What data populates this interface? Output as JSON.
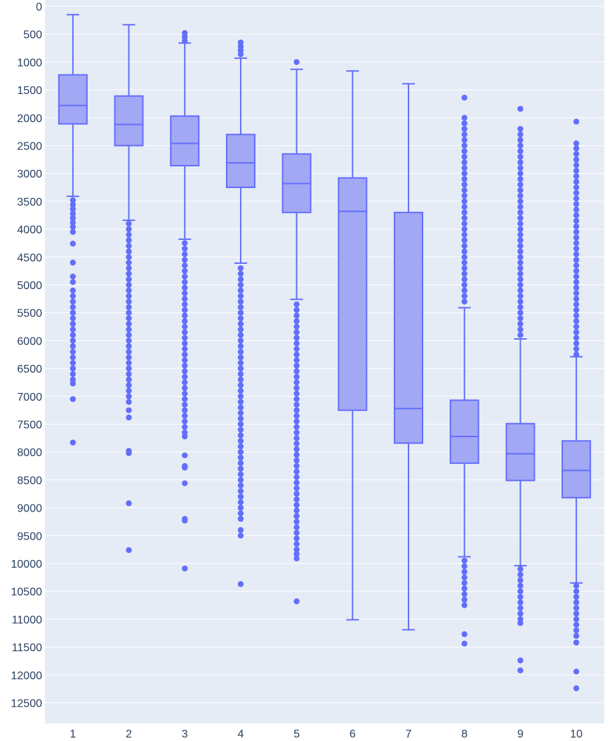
{
  "chart_data": {
    "type": "box",
    "title": "",
    "xlabel": "",
    "ylabel": "",
    "y_axis_reversed": true,
    "ylim": [
      0,
      12900
    ],
    "y_ticks": [
      0,
      500,
      1000,
      1500,
      2000,
      2500,
      3000,
      3500,
      4000,
      4500,
      5000,
      5500,
      6000,
      6500,
      7000,
      7500,
      8000,
      8500,
      9000,
      9500,
      10000,
      10500,
      11000,
      11500,
      12000,
      12500
    ],
    "categories": [
      "1",
      "2",
      "3",
      "4",
      "5",
      "6",
      "7",
      "8",
      "9",
      "10"
    ],
    "grid": true,
    "colors": {
      "box_fill": "#a3a8f5",
      "box_line": "#636efa",
      "plot_bg": "#e5ecf6",
      "grid": "#ffffff"
    },
    "boxes": [
      {
        "category": "1",
        "whisker_low": 150,
        "q1": 1230,
        "median": 1780,
        "q3": 2110,
        "whisker_high": 3410,
        "outliers": [
          3480,
          3560,
          3640,
          3720,
          3800,
          3880,
          3960,
          4050,
          4260,
          4600,
          4850,
          4950,
          5100,
          5200,
          5300,
          5400,
          5500,
          5600,
          5700,
          5800,
          5900,
          6000,
          6100,
          6200,
          6300,
          6400,
          6500,
          6600,
          6700,
          6770,
          7050,
          7830
        ]
      },
      {
        "category": "2",
        "whisker_low": 330,
        "q1": 1610,
        "median": 2120,
        "q3": 2500,
        "whisker_high": 3840,
        "outliers": [
          3900,
          4000,
          4100,
          4200,
          4300,
          4400,
          4500,
          4600,
          4700,
          4800,
          4900,
          5000,
          5100,
          5200,
          5300,
          5400,
          5500,
          5600,
          5700,
          5800,
          5900,
          6000,
          6100,
          6200,
          6300,
          6400,
          6500,
          6600,
          6700,
          6800,
          6900,
          7000,
          7100,
          7250,
          7380,
          7980,
          8020,
          8920,
          9760
        ]
      },
      {
        "category": "3",
        "whisker_low": 660,
        "q1": 1970,
        "median": 2460,
        "q3": 2860,
        "whisker_high": 4180,
        "outliers": [
          480,
          550,
          620,
          4250,
          4350,
          4450,
          4550,
          4650,
          4750,
          4850,
          4950,
          5050,
          5150,
          5250,
          5350,
          5450,
          5550,
          5650,
          5750,
          5850,
          5950,
          6050,
          6150,
          6250,
          6350,
          6450,
          6550,
          6650,
          6750,
          6850,
          6950,
          7050,
          7150,
          7250,
          7350,
          7450,
          7550,
          7650,
          7720,
          8060,
          8250,
          8280,
          8560,
          9200,
          9230,
          10090
        ]
      },
      {
        "category": "4",
        "whisker_low": 930,
        "q1": 2300,
        "median": 2810,
        "q3": 3250,
        "whisker_high": 4610,
        "outliers": [
          650,
          720,
          790,
          860,
          4700,
          4800,
          4900,
          5000,
          5100,
          5200,
          5300,
          5400,
          5500,
          5600,
          5700,
          5800,
          5900,
          6000,
          6100,
          6200,
          6300,
          6400,
          6500,
          6600,
          6700,
          6800,
          6900,
          7000,
          7100,
          7200,
          7300,
          7400,
          7500,
          7600,
          7700,
          7800,
          7900,
          8000,
          8100,
          8200,
          8300,
          8400,
          8500,
          8600,
          8700,
          8800,
          8900,
          9000,
          9100,
          9200,
          9400,
          9500,
          10370
        ]
      },
      {
        "category": "5",
        "whisker_low": 1130,
        "q1": 2650,
        "median": 3180,
        "q3": 3700,
        "whisker_high": 5260,
        "outliers": [
          1000,
          5350,
          5450,
          5550,
          5650,
          5750,
          5850,
          5950,
          6050,
          6150,
          6250,
          6350,
          6450,
          6550,
          6650,
          6750,
          6850,
          6950,
          7050,
          7150,
          7250,
          7350,
          7450,
          7550,
          7650,
          7750,
          7850,
          7950,
          8050,
          8150,
          8250,
          8350,
          8450,
          8550,
          8650,
          8750,
          8850,
          8950,
          9050,
          9150,
          9250,
          9350,
          9450,
          9550,
          9650,
          9750,
          9830,
          9910,
          10680
        ]
      },
      {
        "category": "6",
        "whisker_low": 1160,
        "q1": 3080,
        "median": 3680,
        "q3": 7250,
        "whisker_high": 11010,
        "outliers": []
      },
      {
        "category": "7",
        "whisker_low": 1390,
        "q1": 3700,
        "median": 7220,
        "q3": 7840,
        "whisker_high": 11190,
        "outliers": []
      },
      {
        "category": "8",
        "whisker_low": 5410,
        "q1": 7070,
        "median": 7720,
        "q3": 8200,
        "whisker_high": 9880,
        "outliers": [
          1640,
          2000,
          2100,
          2200,
          2300,
          2400,
          2500,
          2600,
          2700,
          2800,
          2900,
          3000,
          3100,
          3200,
          3300,
          3400,
          3500,
          3600,
          3700,
          3800,
          3900,
          4000,
          4100,
          4200,
          4300,
          4400,
          4500,
          4600,
          4700,
          4800,
          4900,
          5000,
          5100,
          5200,
          5300,
          9950,
          10050,
          10150,
          10250,
          10350,
          10450,
          10550,
          10650,
          10750,
          11270,
          11440
        ]
      },
      {
        "category": "9",
        "whisker_low": 5970,
        "q1": 7490,
        "median": 8030,
        "q3": 8510,
        "whisker_high": 10040,
        "outliers": [
          1840,
          2200,
          2300,
          2400,
          2500,
          2600,
          2700,
          2800,
          2900,
          3000,
          3100,
          3200,
          3300,
          3400,
          3500,
          3600,
          3700,
          3800,
          3900,
          4000,
          4100,
          4200,
          4300,
          4400,
          4500,
          4600,
          4700,
          4800,
          4900,
          5000,
          5100,
          5200,
          5300,
          5400,
          5500,
          5600,
          5700,
          5800,
          5900,
          10100,
          10200,
          10300,
          10400,
          10500,
          10600,
          10700,
          10800,
          10900,
          11000,
          11070,
          11740,
          11920
        ]
      },
      {
        "category": "10",
        "whisker_low": 6290,
        "q1": 7800,
        "median": 8330,
        "q3": 8820,
        "whisker_high": 10350,
        "outliers": [
          2070,
          2460,
          2550,
          2650,
          2750,
          2850,
          2950,
          3050,
          3150,
          3250,
          3350,
          3450,
          3550,
          3650,
          3750,
          3850,
          3950,
          4050,
          4150,
          4250,
          4350,
          4450,
          4550,
          4650,
          4750,
          4850,
          4950,
          5050,
          5150,
          5250,
          5350,
          5450,
          5550,
          5650,
          5750,
          5850,
          5950,
          6050,
          6150,
          6250,
          10400,
          10500,
          10600,
          10700,
          10800,
          10900,
          11000,
          11100,
          11200,
          11300,
          11420,
          11940,
          12240
        ]
      }
    ]
  }
}
